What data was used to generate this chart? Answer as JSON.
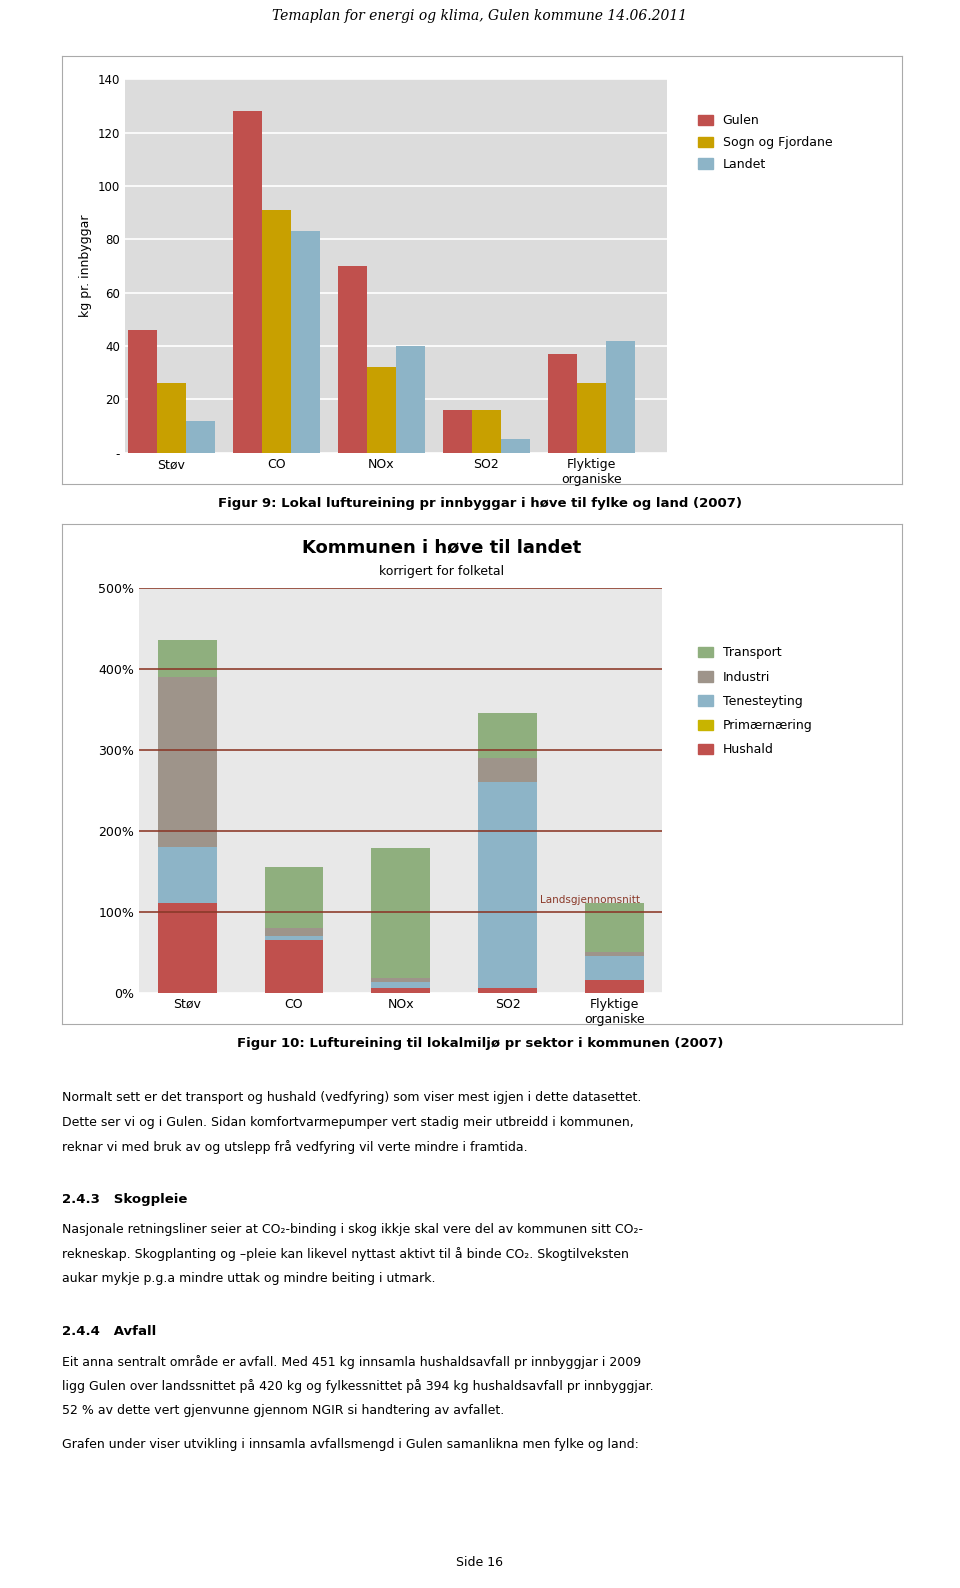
{
  "page_title": "Temaplan for energi og klima, Gulen kommune 14.06.2011",
  "page_title_fontsize": 10,
  "chart1": {
    "ylabel": "kg pr. innbyggar",
    "categories": [
      "Støv",
      "CO",
      "NOx",
      "SO2",
      "Flyktige\norganiske"
    ],
    "series": {
      "Gulen": [
        46,
        128,
        70,
        16,
        37
      ],
      "Sogn og Fjordane": [
        26,
        91,
        32,
        16,
        26
      ],
      "Landet": [
        12,
        83,
        40,
        5,
        42
      ]
    },
    "colors": {
      "Gulen": "#c0504d",
      "Sogn og Fjordane": "#c8a000",
      "Landet": "#8db4c7"
    },
    "ylim": [
      0,
      140
    ],
    "yticks": [
      0,
      20,
      40,
      60,
      80,
      100,
      120,
      140
    ],
    "ytick_labels": [
      "-",
      "20",
      "40",
      "60",
      "80",
      "100",
      "120",
      "140"
    ],
    "bg_color": "#dcdcdc",
    "grid_color": "#ffffff",
    "caption": "Figur 9: Lokal luftureining pr innbyggar i høve til fylke og land (2007)"
  },
  "chart2": {
    "title": "Kommunen i høve til landet",
    "subtitle": "korrigert for folketal",
    "categories": [
      "Støv",
      "CO",
      "NOx",
      "SO2",
      "Flyktige\norganiske"
    ],
    "ylim": [
      0,
      500
    ],
    "yticks": [
      0,
      100,
      200,
      300,
      400,
      500
    ],
    "ytick_labels": [
      "0%",
      "100%",
      "200%",
      "300%",
      "400%",
      "500%"
    ],
    "hline_value": 100,
    "hline_color": "#8b3a2a",
    "landsgjennomsnitt_label": "Landsgjennomsnitt",
    "bg_color": "#e8e8e8",
    "grid_color": "#ffffff",
    "sectors": [
      "Hushald",
      "Primærnæring",
      "Tenesteyting",
      "Industri",
      "Transport"
    ],
    "sector_colors": {
      "Transport": "#8faf7e",
      "Industri": "#9e948a",
      "Tenesteyting": "#8db4c7",
      "Primærnæring": "#c8b400",
      "Hushald": "#c0504d"
    },
    "stacked_data": {
      "Støv": {
        "Hushald": 110,
        "Primærnæring": 0,
        "Tenesteyting": 70,
        "Industri": 210,
        "Transport": 45
      },
      "CO": {
        "Hushald": 65,
        "Primærnæring": 0,
        "Tenesteyting": 5,
        "Industri": 10,
        "Transport": 75
      },
      "NOx": {
        "Hushald": 5,
        "Primærnæring": 0,
        "Tenesteyting": 8,
        "Industri": 5,
        "Transport": 160
      },
      "SO2": {
        "Hushald": 5,
        "Primærnæring": 0,
        "Tenesteyting": 255,
        "Industri": 30,
        "Transport": 55
      },
      "Flyktige\norganiske": {
        "Hushald": 15,
        "Primærnæring": 0,
        "Tenesteyting": 30,
        "Industri": 5,
        "Transport": 60
      }
    },
    "caption": "Figur 10: Luftureining til lokalmiljø pr sektor i kommunen (2007)"
  },
  "text_blocks": [
    "Normalt sett er det transport og hushald (vedfyring) som viser mest igjen i dette datasettet.",
    "Dette ser vi og i Gulen. Sidan komfortvarmepumper vert stadig meir utbreidd i kommunen,",
    "reknar vi med bruk av og utslepp frå vedfyring vil verte mindre i framtida."
  ],
  "section_243_title": "2.4.3   Skogpleie",
  "section_243_text_lines": [
    "Nasjonale retningsliner seier at CO₂-binding i skog ikkje skal vere del av kommunen sitt CO₂-",
    "rekneskap. Skogplanting og –pleie kan likevel nyttast aktivt til å binde CO₂. Skogtilveksten",
    "aukar mykje p.g.a mindre uttak og mindre beiting i utmark."
  ],
  "section_244_title": "2.4.4   Avfall",
  "section_244_text_lines": [
    "Eit anna sentralt område er avfall. Med 451 kg innsamla hushaldsavfall pr innbyggjar i 2009",
    "ligg Gulen over landssnittet på 420 kg og fylkessnittet på 394 kg hushaldsavfall pr innbyggjar.",
    "52 % av dette vert gjenvunne gjennom NGIR si handtering av avfallet."
  ],
  "section_244_extra": "Grafen under viser utvikling i innsamla avfallsmengd i Gulen samanlikna men fylke og land:",
  "page_number": "Side 16"
}
